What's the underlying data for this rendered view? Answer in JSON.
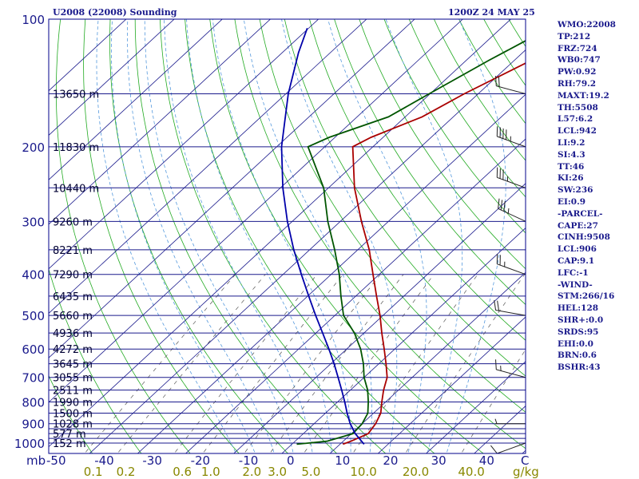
{
  "header": {
    "title_left": "U2008 (22008) Sounding",
    "title_right": "1200Z 24 MAY 25"
  },
  "indices": [
    "WMO:22008",
    "TP:212",
    "FRZ:724",
    "WB0:747",
    "PW:0.92",
    "RH:79.2",
    "MAXT:19.2",
    "TH:5508",
    "L57:6.2",
    "LCL:942",
    "LI:9.2",
    "SI:4.3",
    "TT:46",
    "KI:26",
    "SW:236",
    "EI:0.9",
    "-PARCEL-",
    "CAPE:27",
    "CINH:9508",
    "LCL:906",
    "CAP:9.1",
    "LFC:-1",
    "-WIND-",
    "STM:266/16",
    "HEL:128",
    "SHR+:0.0",
    "SRDS:95",
    "EHI:0.0",
    "BRN:0.6",
    "BSHR:43"
  ],
  "colors": {
    "frame": "#00008b",
    "isobar": "#1a1a8c",
    "isotherm": "#1a1a8c",
    "dry_adiabat": "#22aa22",
    "moist_adiabat": "#5599dd",
    "mixing_ratio": "#555555",
    "temperature": "#aa0000",
    "dewpoint": "#005500",
    "parcel": "#0000aa",
    "wind_barb": "#222222",
    "axis_text": "#1a1a8c",
    "mixing_text": "#888800"
  },
  "chart_data": {
    "type": "line",
    "title": "U2008 (22008) Sounding",
    "subtitle": "1200Z 24 MAY 25",
    "y_axis": {
      "unit": "mb",
      "scale": "log",
      "range": [
        1000,
        100
      ],
      "ticks": [
        100,
        200,
        300,
        400,
        500,
        600,
        700,
        800,
        900,
        1000
      ]
    },
    "x_axis": {
      "unit": "C",
      "ticks": [
        -50,
        -40,
        -30,
        -20,
        -10,
        0,
        10,
        20,
        30,
        40
      ],
      "end_label": "C"
    },
    "isobars": [
      100,
      150,
      200,
      250,
      300,
      350,
      400,
      450,
      500,
      550,
      600,
      650,
      700,
      750,
      800,
      850,
      900,
      925,
      950,
      975,
      1000
    ],
    "heights": [
      {
        "p": 150,
        "label": "13650 m"
      },
      {
        "p": 200,
        "label": "11830 m"
      },
      {
        "p": 250,
        "label": "10440 m"
      },
      {
        "p": 300,
        "label": "9260 m"
      },
      {
        "p": 350,
        "label": "8221 m"
      },
      {
        "p": 400,
        "label": "7290 m"
      },
      {
        "p": 450,
        "label": "6435 m"
      },
      {
        "p": 500,
        "label": "5660 m"
      },
      {
        "p": 550,
        "label": "4936 m"
      },
      {
        "p": 600,
        "label": "4272 m"
      },
      {
        "p": 650,
        "label": "3645 m"
      },
      {
        "p": 700,
        "label": "3055 m"
      },
      {
        "p": 750,
        "label": "2511 m"
      },
      {
        "p": 800,
        "label": "1990 m"
      },
      {
        "p": 850,
        "label": "1500 m"
      },
      {
        "p": 900,
        "label": "1028 m"
      },
      {
        "p": 950,
        "label": "577 m"
      },
      {
        "p": 1000,
        "label": "152 m"
      }
    ],
    "mixing_ratio": {
      "unit": "g/kg",
      "ticks": [
        {
          "value": 0.1,
          "label": "0.1"
        },
        {
          "value": 0.2,
          "label": "0.2"
        },
        {
          "value": 0.6,
          "label": "0.6"
        },
        {
          "value": 1.0,
          "label": "1.0"
        },
        {
          "value": 2.0,
          "label": "2.0"
        },
        {
          "value": 3.0,
          "label": "3.0"
        },
        {
          "value": 5.0,
          "label": "5.0"
        },
        {
          "value": 10.0,
          "label": "10.0"
        },
        {
          "value": 20.0,
          "label": "20.0"
        },
        {
          "value": 40.0,
          "label": "40.0"
        }
      ]
    },
    "series": [
      {
        "key": "temperature",
        "values": [
          [
            1006,
            10.6
          ],
          [
            990,
            11.6
          ],
          [
            950,
            13.5
          ],
          [
            900,
            12.8
          ],
          [
            850,
            11.5
          ],
          [
            800,
            9.2
          ],
          [
            750,
            6.9
          ],
          [
            700,
            4.8
          ],
          [
            650,
            1.5
          ],
          [
            600,
            -2.2
          ],
          [
            550,
            -6.3
          ],
          [
            500,
            -10.6
          ],
          [
            450,
            -15.7
          ],
          [
            400,
            -21.3
          ],
          [
            350,
            -27.6
          ],
          [
            300,
            -35.6
          ],
          [
            250,
            -44.6
          ],
          [
            200,
            -54.2
          ],
          [
            190,
            -52.5
          ],
          [
            170,
            -46.5
          ],
          [
            150,
            -42.9
          ],
          [
            125,
            -36.5
          ],
          [
            110,
            -31.2
          ]
        ]
      },
      {
        "key": "dewpoint",
        "values": [
          [
            1006,
            1.0
          ],
          [
            990,
            6.6
          ],
          [
            950,
            10.3
          ],
          [
            900,
            10.0
          ],
          [
            850,
            8.8
          ],
          [
            800,
            6.4
          ],
          [
            750,
            3.6
          ],
          [
            700,
            0.0
          ],
          [
            650,
            -3.2
          ],
          [
            600,
            -7.1
          ],
          [
            550,
            -12.0
          ],
          [
            500,
            -18.2
          ],
          [
            450,
            -23.1
          ],
          [
            400,
            -28.3
          ],
          [
            350,
            -34.8
          ],
          [
            300,
            -42.6
          ],
          [
            250,
            -51.0
          ],
          [
            200,
            -63.5
          ],
          [
            190,
            -61.2
          ],
          [
            170,
            -53.5
          ],
          [
            150,
            -50.2
          ],
          [
            125,
            -45.3
          ],
          [
            110,
            -41.4
          ]
        ]
      },
      {
        "key": "parcel",
        "values": [
          [
            1006,
            15.0
          ],
          [
            950,
            10.8
          ],
          [
            900,
            7.5
          ],
          [
            850,
            4.5
          ],
          [
            800,
            1.5
          ],
          [
            750,
            -1.8
          ],
          [
            700,
            -5.4
          ],
          [
            650,
            -9.3
          ],
          [
            600,
            -13.7
          ],
          [
            550,
            -18.6
          ],
          [
            500,
            -24.0
          ],
          [
            450,
            -29.8
          ],
          [
            400,
            -36.2
          ],
          [
            350,
            -43.3
          ],
          [
            300,
            -51.0
          ],
          [
            250,
            -59.5
          ],
          [
            200,
            -69.0
          ],
          [
            150,
            -79.5
          ],
          [
            120,
            -86.6
          ],
          [
            105,
            -90.3
          ]
        ]
      }
    ],
    "wind_barbs": [
      {
        "p": 150,
        "dir": 285,
        "kt": 20
      },
      {
        "p": 200,
        "dir": 290,
        "kt": 45
      },
      {
        "p": 250,
        "dir": 290,
        "kt": 35
      },
      {
        "p": 300,
        "dir": 295,
        "kt": 35
      },
      {
        "p": 400,
        "dir": 290,
        "kt": 25
      },
      {
        "p": 500,
        "dir": 280,
        "kt": 20
      },
      {
        "p": 700,
        "dir": 285,
        "kt": 15
      },
      {
        "p": 900,
        "dir": 270,
        "kt": 5
      },
      {
        "p": 1000,
        "dir": 250,
        "kt": 10
      }
    ]
  }
}
